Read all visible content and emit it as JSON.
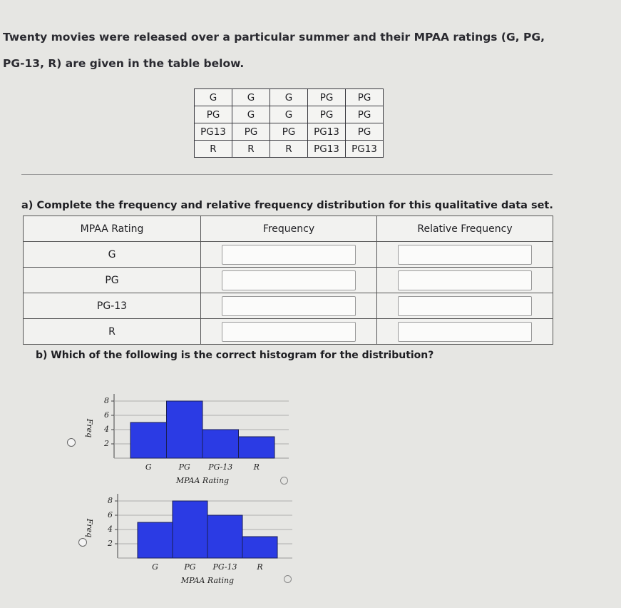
{
  "question": "Twenty movies were released over a particular summer and their MPAA ratings (G, PG, PG-13, R) are given in the table below.",
  "data_table": {
    "rows": [
      [
        "G",
        "G",
        "G",
        "PG",
        "PG"
      ],
      [
        "PG",
        "G",
        "G",
        "PG",
        "PG"
      ],
      [
        "PG13",
        "PG",
        "PG",
        "PG13",
        "PG"
      ],
      [
        "R",
        "R",
        "R",
        "PG13",
        "PG13"
      ]
    ]
  },
  "part_a": {
    "prompt": "a) Complete the frequency and relative frequency distribution for this qualitative data set.",
    "headers": [
      "MPAA Rating",
      "Frequency",
      "Relative Frequency"
    ],
    "rows": [
      "G",
      "PG",
      "PG-13",
      "R"
    ]
  },
  "part_b": {
    "prompt": "b) Which of the following is the correct histogram for the distribution?"
  },
  "chart_data": [
    {
      "type": "bar",
      "categories": [
        "G",
        "PG",
        "PG-13",
        "R"
      ],
      "values": [
        5,
        8,
        4,
        3
      ],
      "color": "#2b3be4",
      "ylim": [
        0,
        9
      ],
      "yticks": [
        2,
        4,
        6,
        8
      ],
      "grid": true,
      "x_label": "MPAA Rating",
      "y_label": "Freq"
    },
    {
      "type": "bar",
      "categories": [
        "G",
        "PG",
        "PG-13",
        "R"
      ],
      "values": [
        5,
        8,
        6,
        3
      ],
      "color": "#2b3be4",
      "ylim": [
        0,
        9
      ],
      "yticks": [
        2,
        4,
        6,
        8
      ],
      "grid": true,
      "x_label": "MPAA Rating",
      "y_label": "Freq"
    }
  ]
}
